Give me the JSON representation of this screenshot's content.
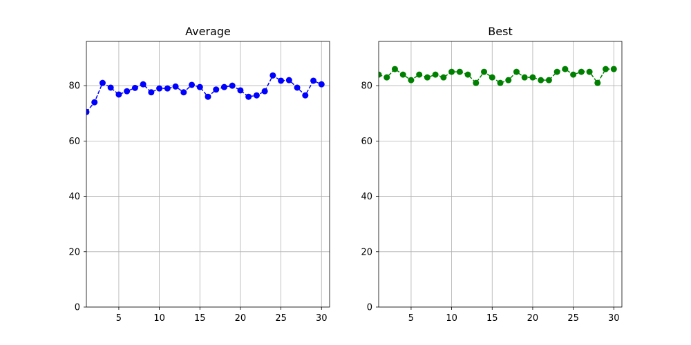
{
  "chart_data": [
    {
      "type": "line",
      "title": "Average",
      "xlabel": "",
      "ylabel": "",
      "xlim": [
        1,
        31
      ],
      "ylim": [
        0,
        96
      ],
      "xticks": [
        5,
        10,
        15,
        20,
        25,
        30
      ],
      "yticks": [
        0,
        20,
        40,
        60,
        80
      ],
      "grid": true,
      "line_style": "dashed",
      "marker": "circle",
      "color": "#0000ff",
      "series": [
        {
          "x": [
            1,
            2,
            3,
            4,
            5,
            6,
            7,
            8,
            9,
            10,
            11,
            12,
            13,
            14,
            15,
            16,
            17,
            18,
            19,
            20,
            21,
            22,
            23,
            24,
            25,
            26,
            27,
            28,
            29,
            30
          ],
          "values": [
            70.5,
            74.0,
            81.0,
            79.3,
            76.8,
            78.0,
            79.2,
            80.5,
            77.6,
            79.0,
            79.0,
            79.7,
            77.6,
            80.3,
            79.5,
            76.0,
            78.6,
            79.5,
            80.0,
            78.3,
            76.0,
            76.5,
            78.0,
            83.7,
            81.8,
            82.0,
            79.3,
            76.5,
            81.8,
            80.5
          ]
        }
      ]
    },
    {
      "type": "line",
      "title": "Best",
      "xlabel": "",
      "ylabel": "",
      "xlim": [
        1,
        31
      ],
      "ylim": [
        0,
        96
      ],
      "xticks": [
        5,
        10,
        15,
        20,
        25,
        30
      ],
      "yticks": [
        0,
        20,
        40,
        60,
        80
      ],
      "grid": true,
      "line_style": "dashed",
      "marker": "circle",
      "color": "#008000",
      "series": [
        {
          "x": [
            1,
            2,
            3,
            4,
            5,
            6,
            7,
            8,
            9,
            10,
            11,
            12,
            13,
            14,
            15,
            16,
            17,
            18,
            19,
            20,
            21,
            22,
            23,
            24,
            25,
            26,
            27,
            28,
            29,
            30
          ],
          "values": [
            84,
            83,
            86,
            84,
            82,
            84,
            83,
            84,
            83,
            85,
            85,
            84,
            81,
            85,
            83,
            81,
            82,
            85,
            83,
            83,
            82,
            82,
            85,
            86,
            84,
            85,
            85,
            81,
            86,
            86
          ]
        }
      ]
    }
  ]
}
